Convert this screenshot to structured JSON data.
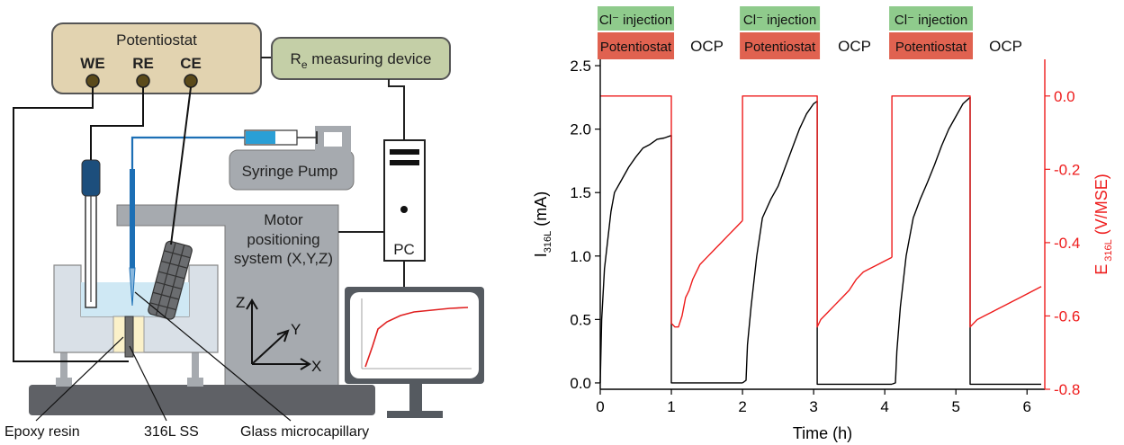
{
  "schematic": {
    "potentiostat_title": "Potentiostat",
    "we": "WE",
    "re": "RE",
    "ce": "CE",
    "re_device_main": "R",
    "re_device_sub": "e",
    "re_device_rest": " measuring device",
    "syringe_pump": "Syringe Pump",
    "motor_line1": "Motor",
    "motor_line2": "positioning",
    "motor_line3": "system (X,Y,Z)",
    "pc": "PC",
    "axis_z": "Z",
    "axis_y": "Y",
    "axis_x": "X",
    "label_epoxy": "Epoxy resin",
    "label_ss": "316L SS",
    "label_capillary": "Glass microcapillary",
    "colors": {
      "potentiostat_fill": "#e2d3b0",
      "re_device_fill": "#c4cfa7",
      "gray_fill": "#a6aaaf",
      "syringe_fill": "#2a9fd6",
      "electrode_blue": "#1c4e7c",
      "solution": "#cfe8f4",
      "base_dark": "#5f6166"
    }
  },
  "chart_data": {
    "type": "line",
    "xlabel": "Time (h)",
    "ylabel_left_main": "I",
    "ylabel_left_sub": "316L",
    "ylabel_left_unit": "(mA)",
    "ylabel_right_main": "E",
    "ylabel_right_sub": "316L",
    "ylabel_right_unit": "(V/MSE)",
    "xlim": [
      0,
      6.25
    ],
    "ylim_left": [
      -0.05,
      2.55
    ],
    "ylim_right": [
      -0.8,
      0.1
    ],
    "x_ticks": [
      "0",
      "1",
      "2",
      "3",
      "4",
      "5",
      "6"
    ],
    "y_left_ticks": [
      "0.0",
      "0.5",
      "1.0",
      "1.5",
      "2.0",
      "2.5"
    ],
    "y_right_ticks": [
      "0.0",
      "-0.2",
      "-0.4",
      "-0.6",
      "-0.8"
    ],
    "top_labels": {
      "injection": "Cl⁻ injection",
      "potentiostat": "Potentiostat",
      "ocp": "OCP"
    },
    "phases": [
      {
        "injection_start": 0,
        "injection_end": 1.0,
        "ocp_start": 1.0,
        "ocp_end": 2.0
      },
      {
        "injection_start": 2.0,
        "injection_end": 3.05,
        "ocp_start": 3.05,
        "ocp_end": 4.1
      },
      {
        "injection_start": 4.1,
        "injection_end": 5.2,
        "ocp_start": 5.2,
        "ocp_end": 6.2
      }
    ],
    "series": [
      {
        "axis": "left",
        "color": "#000000",
        "segments": [
          [
            [
              0,
              0.0
            ],
            [
              0.02,
              0.5
            ],
            [
              0.06,
              0.9
            ],
            [
              0.1,
              1.1
            ],
            [
              0.15,
              1.35
            ],
            [
              0.2,
              1.5
            ],
            [
              0.3,
              1.6
            ],
            [
              0.4,
              1.7
            ],
            [
              0.5,
              1.78
            ],
            [
              0.6,
              1.85
            ],
            [
              0.7,
              1.88
            ],
            [
              0.8,
              1.92
            ],
            [
              0.9,
              1.93
            ],
            [
              1.0,
              1.95
            ],
            [
              1.0,
              0.0
            ],
            [
              1.2,
              0.0
            ],
            [
              1.5,
              0.0
            ],
            [
              1.8,
              0.0
            ],
            [
              2.0,
              0.0
            ]
          ],
          [
            [
              2.0,
              0.0
            ],
            [
              2.05,
              0.02
            ],
            [
              2.07,
              0.3
            ],
            [
              2.12,
              0.6
            ],
            [
              2.2,
              1.0
            ],
            [
              2.28,
              1.3
            ],
            [
              2.4,
              1.45
            ],
            [
              2.5,
              1.55
            ],
            [
              2.6,
              1.7
            ],
            [
              2.7,
              1.85
            ],
            [
              2.8,
              2.0
            ],
            [
              2.9,
              2.12
            ],
            [
              3.0,
              2.2
            ],
            [
              3.05,
              2.22
            ],
            [
              3.05,
              -0.01
            ],
            [
              3.4,
              -0.01
            ],
            [
              3.8,
              -0.01
            ],
            [
              4.1,
              -0.01
            ]
          ],
          [
            [
              4.1,
              -0.01
            ],
            [
              4.15,
              0.0
            ],
            [
              4.17,
              0.25
            ],
            [
              4.22,
              0.6
            ],
            [
              4.3,
              1.0
            ],
            [
              4.4,
              1.3
            ],
            [
              4.5,
              1.45
            ],
            [
              4.6,
              1.58
            ],
            [
              4.7,
              1.72
            ],
            [
              4.8,
              1.87
            ],
            [
              4.9,
              2.0
            ],
            [
              5.0,
              2.1
            ],
            [
              5.1,
              2.2
            ],
            [
              5.2,
              2.25
            ],
            [
              5.2,
              -0.01
            ],
            [
              5.6,
              -0.01
            ],
            [
              6.0,
              -0.01
            ],
            [
              6.2,
              -0.01
            ]
          ]
        ]
      },
      {
        "axis": "right",
        "color": "#ee1c1c",
        "segments": [
          [
            [
              0,
              0.0
            ],
            [
              1.0,
              0.0
            ],
            [
              1.0,
              -0.62
            ],
            [
              1.05,
              -0.63
            ],
            [
              1.1,
              -0.63
            ],
            [
              1.15,
              -0.6
            ],
            [
              1.2,
              -0.55
            ],
            [
              1.25,
              -0.53
            ],
            [
              1.3,
              -0.5
            ],
            [
              1.4,
              -0.46
            ],
            [
              1.5,
              -0.44
            ],
            [
              1.6,
              -0.42
            ],
            [
              1.7,
              -0.4
            ],
            [
              1.8,
              -0.38
            ],
            [
              1.9,
              -0.36
            ],
            [
              2.0,
              -0.34
            ]
          ],
          [
            [
              2.0,
              -0.34
            ],
            [
              2.0,
              0.0
            ],
            [
              3.05,
              0.0
            ],
            [
              3.05,
              -0.63
            ],
            [
              3.1,
              -0.61
            ],
            [
              3.2,
              -0.59
            ],
            [
              3.3,
              -0.57
            ],
            [
              3.4,
              -0.55
            ],
            [
              3.5,
              -0.53
            ],
            [
              3.6,
              -0.5
            ],
            [
              3.7,
              -0.48
            ],
            [
              3.8,
              -0.47
            ],
            [
              3.9,
              -0.46
            ],
            [
              4.0,
              -0.45
            ],
            [
              4.1,
              -0.44
            ]
          ],
          [
            [
              4.1,
              -0.44
            ],
            [
              4.1,
              0.0
            ],
            [
              5.2,
              0.0
            ],
            [
              5.2,
              -0.63
            ],
            [
              5.3,
              -0.61
            ],
            [
              5.4,
              -0.6
            ],
            [
              5.5,
              -0.59
            ],
            [
              5.6,
              -0.58
            ],
            [
              5.7,
              -0.57
            ],
            [
              5.8,
              -0.56
            ],
            [
              5.9,
              -0.55
            ],
            [
              6.0,
              -0.54
            ],
            [
              6.1,
              -0.53
            ],
            [
              6.2,
              -0.52
            ]
          ]
        ]
      }
    ]
  }
}
